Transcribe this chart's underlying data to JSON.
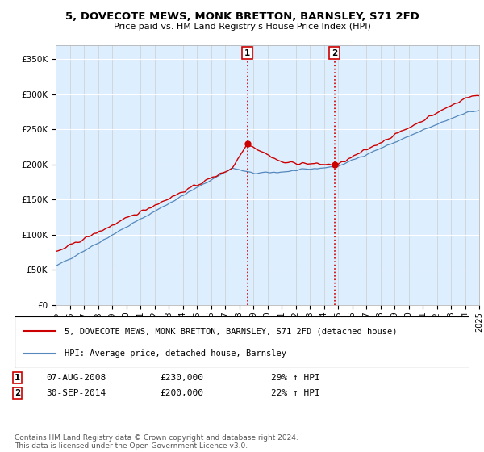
{
  "title": "5, DOVECOTE MEWS, MONK BRETTON, BARNSLEY, S71 2FD",
  "subtitle": "Price paid vs. HM Land Registry's House Price Index (HPI)",
  "ylabel_ticks": [
    "£0",
    "£50K",
    "£100K",
    "£150K",
    "£200K",
    "£250K",
    "£300K",
    "£350K"
  ],
  "ytick_values": [
    0,
    50000,
    100000,
    150000,
    200000,
    250000,
    300000,
    350000
  ],
  "ylim": [
    0,
    370000
  ],
  "sale1_date": "07-AUG-2008",
  "sale1_price": 230000,
  "sale1_price_str": "£230,000",
  "sale1_hpi": "29% ↑ HPI",
  "sale2_date": "30-SEP-2014",
  "sale2_price": 200000,
  "sale2_price_str": "£200,000",
  "sale2_hpi": "22% ↑ HPI",
  "legend_label1": "5, DOVECOTE MEWS, MONK BRETTON, BARNSLEY, S71 2FD (detached house)",
  "legend_label2": "HPI: Average price, detached house, Barnsley",
  "footer": "Contains HM Land Registry data © Crown copyright and database right 2024.\nThis data is licensed under the Open Government Licence v3.0.",
  "red_color": "#cc0000",
  "blue_color": "#5588bb",
  "bg_color": "#ddeeff",
  "sale1_x_year": 2008.58,
  "sale2_x_year": 2014.75,
  "xmin": 1995,
  "xmax": 2025
}
